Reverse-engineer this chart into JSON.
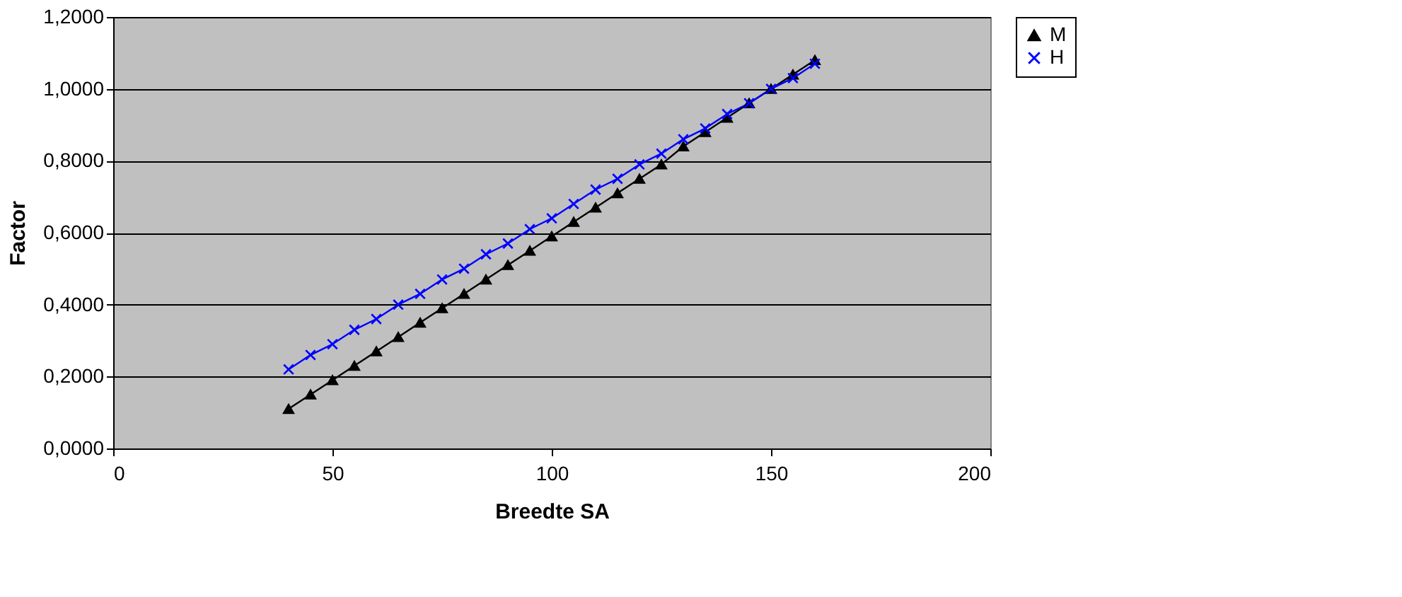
{
  "chart_data": {
    "type": "line",
    "xlabel": "Breedte SA",
    "ylabel": "Factor",
    "x": [
      40,
      45,
      50,
      55,
      60,
      65,
      70,
      75,
      80,
      85,
      90,
      95,
      100,
      105,
      110,
      115,
      120,
      125,
      130,
      135,
      140,
      145,
      150,
      155,
      160
    ],
    "series": [
      {
        "name": "M",
        "color": "#000000",
        "marker": "triangle",
        "values": [
          0.11,
          0.15,
          0.19,
          0.23,
          0.27,
          0.31,
          0.35,
          0.39,
          0.43,
          0.47,
          0.51,
          0.55,
          0.59,
          0.63,
          0.67,
          0.71,
          0.75,
          0.79,
          0.84,
          0.88,
          0.92,
          0.96,
          1.0,
          1.04,
          1.08
        ]
      },
      {
        "name": "H",
        "color": "#0000ff",
        "marker": "cross",
        "values": [
          0.22,
          0.26,
          0.29,
          0.33,
          0.36,
          0.4,
          0.43,
          0.47,
          0.5,
          0.54,
          0.57,
          0.61,
          0.64,
          0.68,
          0.72,
          0.75,
          0.79,
          0.82,
          0.86,
          0.89,
          0.93,
          0.96,
          1.0,
          1.03,
          1.07
        ]
      }
    ],
    "xlim": [
      0,
      200
    ],
    "xticks": [
      0,
      50,
      100,
      150,
      200
    ],
    "ylim": [
      0,
      1.2
    ],
    "yticks": [
      {
        "value": 0,
        "label": "0,0000"
      },
      {
        "value": 0.2,
        "label": "0,2000"
      },
      {
        "value": 0.4,
        "label": "0,4000"
      },
      {
        "value": 0.6,
        "label": "0,6000"
      },
      {
        "value": 0.8,
        "label": "0,8000"
      },
      {
        "value": 1.0,
        "label": "1,0000"
      },
      {
        "value": 1.2,
        "label": "1,2000"
      }
    ],
    "grid": "y",
    "legend": "right"
  }
}
